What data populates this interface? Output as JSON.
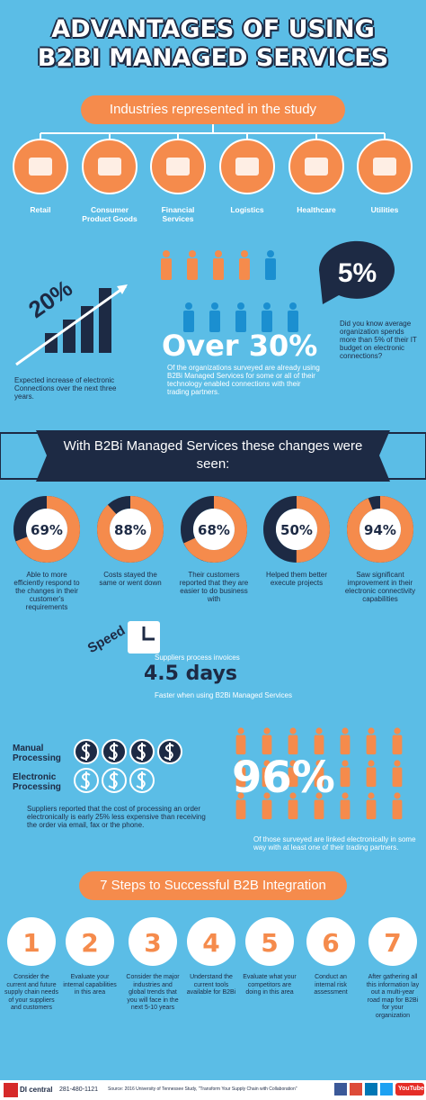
{
  "header": {
    "title_line1": "ADVANTAGES OF USING",
    "title_line2": "B2BI MANAGED SERVICES"
  },
  "industries": {
    "heading": "Industries represented in the study",
    "items": [
      "Retail",
      "Consumer Product Goods",
      "Financial Services",
      "Logistics",
      "Healthcare",
      "Utilities"
    ]
  },
  "stats": {
    "it_budget": {
      "figure": "5%",
      "text": "Did you know average organization spends more than 5% of their IT budget on electronic connections?"
    },
    "increase": {
      "figure": "20%",
      "text": "Expected increase of electronic Connections over the next three years."
    },
    "adoption": {
      "figure": "Over 30%",
      "text": "Of the organizations surveyed are already using B2Bi Managed Services for some or all of their technology enabled connections with their trading partners."
    }
  },
  "changes": {
    "heading": "With B2Bi Managed Services these changes were seen:",
    "items": [
      {
        "value": 69,
        "label": "69%",
        "text": "Able to more efficiently respond to the changes in their customer's requirements"
      },
      {
        "value": 88,
        "label": "88%",
        "text": "Costs stayed the same or went down"
      },
      {
        "value": 68,
        "label": "68%",
        "text": "Their customers reported that they are easier to do business with"
      },
      {
        "value": 50,
        "label": "50%",
        "text": "Helped them better execute projects"
      },
      {
        "value": 94,
        "label": "94%",
        "text": "Saw significant improvement in their electronic connectivity capabilities"
      }
    ]
  },
  "speed": {
    "label": "Speed",
    "line1": "Suppliers process invoices",
    "figure": "4.5 days",
    "line2": "Faster when using B2Bi Managed Services"
  },
  "processing": {
    "manual": "Manual Processing",
    "electronic": "Electronic Processing",
    "text": "Suppliers reported that the cost of processing an order electronically is early 25% less expensive than receiving the order via email, fax or the phone."
  },
  "linked": {
    "figure": "96%",
    "text": "Of those surveyed are linked electronically in some way with at least one of their trading partners."
  },
  "steps": {
    "heading": "7 Steps to Successful B2B Integration",
    "items": [
      {
        "number": "1",
        "text": "Consider the current and future supply chain needs of your suppliers and customers"
      },
      {
        "number": "2",
        "text": "Evaluate your internal capabilities in this area"
      },
      {
        "number": "3",
        "text": "Consider the major industries and global trends that you will face in the next 5-10 years"
      },
      {
        "number": "4",
        "text": "Understand the current tools available for B2Bi"
      },
      {
        "number": "5",
        "text": "Evaluate what your competitors are doing in this area"
      },
      {
        "number": "6",
        "text": "Conduct an internal risk assessment"
      },
      {
        "number": "7",
        "text": "After gathering all this information lay out a multi-year road map for B2Bi for your organization"
      }
    ]
  },
  "footer": {
    "logo": "DI central",
    "phone": "281-480-1121",
    "source": "Source: 2016 University of Tennessee Study, \"Transform Your Supply Chain with Collaboration\"",
    "youtube": "YouTube"
  }
}
